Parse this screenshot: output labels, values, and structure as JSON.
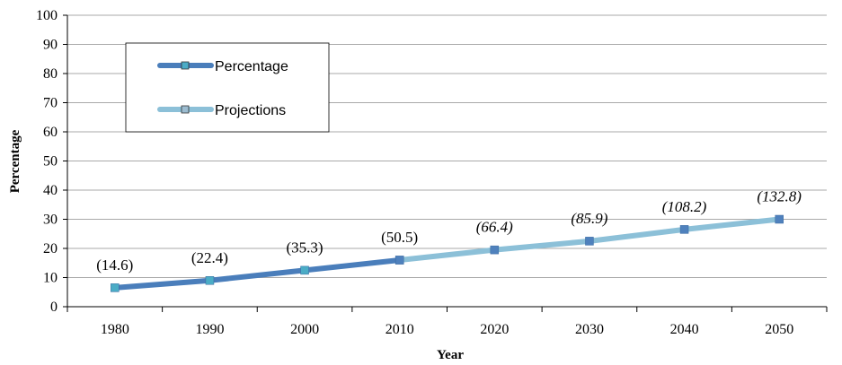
{
  "chart_data": {
    "type": "line",
    "xlabel": "Year",
    "ylabel": "Percentage",
    "ylim": [
      0,
      100
    ],
    "yticks": [
      0,
      10,
      20,
      30,
      40,
      50,
      60,
      70,
      80,
      90,
      100
    ],
    "categories": [
      "1980",
      "1990",
      "2000",
      "2010",
      "2020",
      "2030",
      "2040",
      "2050"
    ],
    "grid": true,
    "legend_position": "top-left",
    "series": [
      {
        "name": "Percentage",
        "color": "#4a7ebb",
        "x": [
          "1980",
          "1990",
          "2000",
          "2010"
        ],
        "values": [
          6.5,
          9,
          12.5,
          16
        ]
      },
      {
        "name": "Projections",
        "color": "#8cc0d8",
        "x": [
          "2010",
          "2020",
          "2030",
          "2040",
          "2050"
        ],
        "values": [
          16,
          19.5,
          22.5,
          26.5,
          30
        ]
      }
    ],
    "data_labels": [
      {
        "x": "1980",
        "text": "(14.6)",
        "italic": false
      },
      {
        "x": "1990",
        "text": "(22.4)",
        "italic": false
      },
      {
        "x": "2000",
        "text": "(35.3)",
        "italic": false
      },
      {
        "x": "2010",
        "text": "(50.5)",
        "italic": false
      },
      {
        "x": "2020",
        "text": "(66.4)",
        "italic": true
      },
      {
        "x": "2030",
        "text": "(85.9)",
        "italic": true
      },
      {
        "x": "2040",
        "text": "(108.2)",
        "italic": true
      },
      {
        "x": "2050",
        "text": "(132.8)",
        "italic": true
      }
    ]
  }
}
